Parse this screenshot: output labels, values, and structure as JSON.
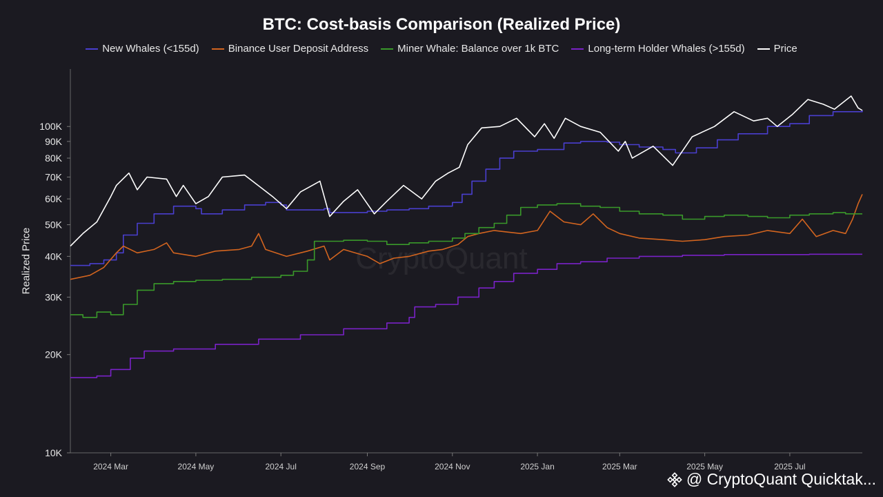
{
  "chart_data": {
    "type": "line",
    "title": "BTC: Cost-basis Comparison (Realized Price)",
    "ylabel": "Realized Price",
    "xlabel": "",
    "yscale": "log",
    "ylim": [
      10000,
      150000
    ],
    "y_ticks": [
      {
        "value": 10000,
        "label": "10K"
      },
      {
        "value": 20000,
        "label": "20K"
      },
      {
        "value": 30000,
        "label": "30K"
      },
      {
        "value": 40000,
        "label": "40K"
      },
      {
        "value": 50000,
        "label": "50K"
      },
      {
        "value": 60000,
        "label": "60K"
      },
      {
        "value": 70000,
        "label": "70K"
      },
      {
        "value": 80000,
        "label": "80K"
      },
      {
        "value": 90000,
        "label": "90K"
      },
      {
        "value": 100000,
        "label": "100K"
      }
    ],
    "x_range": [
      "2024-02-01",
      "2025-08-22"
    ],
    "x_ticks": [
      {
        "date": "2024-03-01",
        "label": "2024 Mar"
      },
      {
        "date": "2024-05-01",
        "label": "2024 May"
      },
      {
        "date": "2024-07-01",
        "label": "2024 Jul"
      },
      {
        "date": "2024-09-01",
        "label": "2024 Sep"
      },
      {
        "date": "2024-11-01",
        "label": "2024 Nov"
      },
      {
        "date": "2025-01-01",
        "label": "2025 Jan"
      },
      {
        "date": "2025-03-01",
        "label": "2025 Mar"
      },
      {
        "date": "2025-05-01",
        "label": "2025 May"
      },
      {
        "date": "2025-07-01",
        "label": "2025 Jul"
      }
    ],
    "legend_position": "top-center",
    "grid": false,
    "series": [
      {
        "name": "New Whales (<155d)",
        "color": "#4a3fd0",
        "step": true,
        "points": [
          [
            "2024-02-01",
            37500
          ],
          [
            "2024-02-15",
            38000
          ],
          [
            "2024-02-25",
            39000
          ],
          [
            "2024-03-05",
            41000
          ],
          [
            "2024-03-10",
            46500
          ],
          [
            "2024-03-20",
            50500
          ],
          [
            "2024-04-01",
            54000
          ],
          [
            "2024-04-15",
            57000
          ],
          [
            "2024-05-01",
            56000
          ],
          [
            "2024-05-05",
            54000
          ],
          [
            "2024-05-20",
            55500
          ],
          [
            "2024-06-05",
            57500
          ],
          [
            "2024-06-20",
            58500
          ],
          [
            "2024-07-01",
            57500
          ],
          [
            "2024-07-05",
            55500
          ],
          [
            "2024-08-01",
            56000
          ],
          [
            "2024-08-05",
            54500
          ],
          [
            "2024-09-01",
            55000
          ],
          [
            "2024-09-15",
            55500
          ],
          [
            "2024-10-01",
            56000
          ],
          [
            "2024-10-15",
            57000
          ],
          [
            "2024-11-01",
            58500
          ],
          [
            "2024-11-08",
            62000
          ],
          [
            "2024-11-15",
            68000
          ],
          [
            "2024-11-25",
            74000
          ],
          [
            "2024-12-05",
            80000
          ],
          [
            "2024-12-15",
            84000
          ],
          [
            "2025-01-01",
            85000
          ],
          [
            "2025-01-20",
            89000
          ],
          [
            "2025-02-01",
            90000
          ],
          [
            "2025-02-20",
            89500
          ],
          [
            "2025-03-01",
            88000
          ],
          [
            "2025-03-15",
            86500
          ],
          [
            "2025-04-01",
            85000
          ],
          [
            "2025-04-10",
            83000
          ],
          [
            "2025-04-25",
            86000
          ],
          [
            "2025-05-10",
            91000
          ],
          [
            "2025-05-25",
            95000
          ],
          [
            "2025-06-15",
            100000
          ],
          [
            "2025-07-01",
            102000
          ],
          [
            "2025-07-15",
            108000
          ],
          [
            "2025-08-01",
            111000
          ],
          [
            "2025-08-22",
            112000
          ]
        ]
      },
      {
        "name": "Binance User Deposit Address",
        "color": "#d4651f",
        "step": false,
        "points": [
          [
            "2024-02-01",
            34000
          ],
          [
            "2024-02-15",
            35000
          ],
          [
            "2024-02-25",
            37000
          ],
          [
            "2024-03-05",
            41000
          ],
          [
            "2024-03-10",
            43000
          ],
          [
            "2024-03-20",
            41000
          ],
          [
            "2024-04-01",
            42000
          ],
          [
            "2024-04-10",
            44000
          ],
          [
            "2024-04-15",
            41000
          ],
          [
            "2024-05-01",
            40000
          ],
          [
            "2024-05-15",
            41500
          ],
          [
            "2024-06-01",
            42000
          ],
          [
            "2024-06-10",
            43000
          ],
          [
            "2024-06-15",
            47000
          ],
          [
            "2024-06-20",
            42000
          ],
          [
            "2024-07-05",
            40000
          ],
          [
            "2024-07-20",
            41500
          ],
          [
            "2024-08-01",
            43000
          ],
          [
            "2024-08-05",
            39000
          ],
          [
            "2024-08-15",
            42000
          ],
          [
            "2024-09-01",
            40000
          ],
          [
            "2024-09-10",
            38000
          ],
          [
            "2024-09-20",
            39500
          ],
          [
            "2024-10-01",
            40000
          ],
          [
            "2024-10-15",
            41500
          ],
          [
            "2024-10-25",
            42000
          ],
          [
            "2024-11-05",
            43500
          ],
          [
            "2024-11-12",
            46000
          ],
          [
            "2024-11-20",
            47000
          ],
          [
            "2024-12-01",
            48000
          ],
          [
            "2024-12-10",
            47500
          ],
          [
            "2024-12-20",
            47000
          ],
          [
            "2025-01-01",
            48000
          ],
          [
            "2025-01-10",
            55000
          ],
          [
            "2025-01-20",
            51000
          ],
          [
            "2025-02-01",
            50000
          ],
          [
            "2025-02-10",
            54000
          ],
          [
            "2025-02-20",
            49000
          ],
          [
            "2025-03-01",
            47000
          ],
          [
            "2025-03-15",
            45500
          ],
          [
            "2025-04-01",
            45000
          ],
          [
            "2025-04-15",
            44500
          ],
          [
            "2025-05-01",
            45000
          ],
          [
            "2025-05-15",
            46000
          ],
          [
            "2025-06-01",
            46500
          ],
          [
            "2025-06-15",
            48000
          ],
          [
            "2025-07-01",
            47000
          ],
          [
            "2025-07-10",
            52000
          ],
          [
            "2025-07-20",
            46000
          ],
          [
            "2025-08-01",
            48000
          ],
          [
            "2025-08-10",
            47000
          ],
          [
            "2025-08-15",
            52000
          ],
          [
            "2025-08-19",
            58000
          ],
          [
            "2025-08-22",
            62000
          ]
        ]
      },
      {
        "name": "Miner Whale: Balance over 1k BTC",
        "color": "#3a9a2a",
        "step": true,
        "points": [
          [
            "2024-02-01",
            26500
          ],
          [
            "2024-02-10",
            26000
          ],
          [
            "2024-02-20",
            27000
          ],
          [
            "2024-03-01",
            26500
          ],
          [
            "2024-03-10",
            28500
          ],
          [
            "2024-03-20",
            31500
          ],
          [
            "2024-04-01",
            33000
          ],
          [
            "2024-04-15",
            33500
          ],
          [
            "2024-05-01",
            33800
          ],
          [
            "2024-05-20",
            34000
          ],
          [
            "2024-06-10",
            34500
          ],
          [
            "2024-07-01",
            35000
          ],
          [
            "2024-07-10",
            36000
          ],
          [
            "2024-07-20",
            39000
          ],
          [
            "2024-07-25",
            44500
          ],
          [
            "2024-08-15",
            44800
          ],
          [
            "2024-09-01",
            44500
          ],
          [
            "2024-09-15",
            43500
          ],
          [
            "2024-10-01",
            44000
          ],
          [
            "2024-10-15",
            44500
          ],
          [
            "2024-11-01",
            45500
          ],
          [
            "2024-11-10",
            47000
          ],
          [
            "2024-11-20",
            49000
          ],
          [
            "2024-12-01",
            50500
          ],
          [
            "2024-12-10",
            53500
          ],
          [
            "2024-12-20",
            56500
          ],
          [
            "2025-01-01",
            57500
          ],
          [
            "2025-01-15",
            58000
          ],
          [
            "2025-02-01",
            57000
          ],
          [
            "2025-02-15",
            56500
          ],
          [
            "2025-03-01",
            55000
          ],
          [
            "2025-03-15",
            54000
          ],
          [
            "2025-04-01",
            53500
          ],
          [
            "2025-04-15",
            52000
          ],
          [
            "2025-05-01",
            53000
          ],
          [
            "2025-05-15",
            53500
          ],
          [
            "2025-06-01",
            53000
          ],
          [
            "2025-06-15",
            52500
          ],
          [
            "2025-07-01",
            53500
          ],
          [
            "2025-07-15",
            54000
          ],
          [
            "2025-08-01",
            54500
          ],
          [
            "2025-08-10",
            54000
          ],
          [
            "2025-08-22",
            54000
          ]
        ]
      },
      {
        "name": "Long-term Holder Whales (>155d)",
        "color": "#7a22c8",
        "step": true,
        "points": [
          [
            "2024-02-01",
            17000
          ],
          [
            "2024-02-20",
            17200
          ],
          [
            "2024-03-01",
            18000
          ],
          [
            "2024-03-15",
            19500
          ],
          [
            "2024-03-25",
            20500
          ],
          [
            "2024-04-15",
            20800
          ],
          [
            "2024-05-15",
            21500
          ],
          [
            "2024-06-15",
            22300
          ],
          [
            "2024-07-15",
            23000
          ],
          [
            "2024-08-15",
            24000
          ],
          [
            "2024-09-15",
            25000
          ],
          [
            "2024-10-01",
            26000
          ],
          [
            "2024-10-05",
            28000
          ],
          [
            "2024-10-20",
            28500
          ],
          [
            "2024-11-05",
            30000
          ],
          [
            "2024-11-20",
            32000
          ],
          [
            "2024-12-01",
            33500
          ],
          [
            "2024-12-15",
            35500
          ],
          [
            "2025-01-01",
            36500
          ],
          [
            "2025-01-15",
            38000
          ],
          [
            "2025-02-01",
            38500
          ],
          [
            "2025-02-20",
            39500
          ],
          [
            "2025-03-15",
            40000
          ],
          [
            "2025-04-15",
            40300
          ],
          [
            "2025-05-15",
            40500
          ],
          [
            "2025-06-15",
            40500
          ],
          [
            "2025-07-15",
            40600
          ],
          [
            "2025-08-22",
            40600
          ]
        ]
      },
      {
        "name": "Price",
        "color": "#ffffff",
        "step": false,
        "points": [
          [
            "2024-02-01",
            43000
          ],
          [
            "2024-02-10",
            47000
          ],
          [
            "2024-02-20",
            51000
          ],
          [
            "2024-03-01",
            61000
          ],
          [
            "2024-03-05",
            66000
          ],
          [
            "2024-03-14",
            72000
          ],
          [
            "2024-03-20",
            64000
          ],
          [
            "2024-03-27",
            70000
          ],
          [
            "2024-04-10",
            69000
          ],
          [
            "2024-04-17",
            61000
          ],
          [
            "2024-04-22",
            66000
          ],
          [
            "2024-05-01",
            58000
          ],
          [
            "2024-05-10",
            61000
          ],
          [
            "2024-05-20",
            70000
          ],
          [
            "2024-06-05",
            71000
          ],
          [
            "2024-06-25",
            61000
          ],
          [
            "2024-07-05",
            56000
          ],
          [
            "2024-07-15",
            63000
          ],
          [
            "2024-07-29",
            68000
          ],
          [
            "2024-08-05",
            53000
          ],
          [
            "2024-08-15",
            59000
          ],
          [
            "2024-08-25",
            64000
          ],
          [
            "2024-09-06",
            54000
          ],
          [
            "2024-09-15",
            59000
          ],
          [
            "2024-09-27",
            66000
          ],
          [
            "2024-10-10",
            60000
          ],
          [
            "2024-10-20",
            68000
          ],
          [
            "2024-10-29",
            72000
          ],
          [
            "2024-11-06",
            75000
          ],
          [
            "2024-11-12",
            88000
          ],
          [
            "2024-11-22",
            99000
          ],
          [
            "2024-12-05",
            100000
          ],
          [
            "2024-12-17",
            106000
          ],
          [
            "2024-12-30",
            93000
          ],
          [
            "2025-01-06",
            102000
          ],
          [
            "2025-01-13",
            92000
          ],
          [
            "2025-01-21",
            106000
          ],
          [
            "2025-02-01",
            100000
          ],
          [
            "2025-02-15",
            96000
          ],
          [
            "2025-02-28",
            84000
          ],
          [
            "2025-03-05",
            90000
          ],
          [
            "2025-03-10",
            80000
          ],
          [
            "2025-03-25",
            87000
          ],
          [
            "2025-04-08",
            76000
          ],
          [
            "2025-04-22",
            93000
          ],
          [
            "2025-05-08",
            100000
          ],
          [
            "2025-05-22",
            111000
          ],
          [
            "2025-06-05",
            104000
          ],
          [
            "2025-06-15",
            106000
          ],
          [
            "2025-06-22",
            100000
          ],
          [
            "2025-07-03",
            109000
          ],
          [
            "2025-07-14",
            121000
          ],
          [
            "2025-07-25",
            117000
          ],
          [
            "2025-08-02",
            113000
          ],
          [
            "2025-08-14",
            124000
          ],
          [
            "2025-08-19",
            114000
          ],
          [
            "2025-08-22",
            112000
          ]
        ]
      }
    ]
  },
  "watermark": "CryptoQuant",
  "footer": {
    "text": "@ CryptoQuant Quicktak...",
    "icon": "binance-logo-icon"
  }
}
